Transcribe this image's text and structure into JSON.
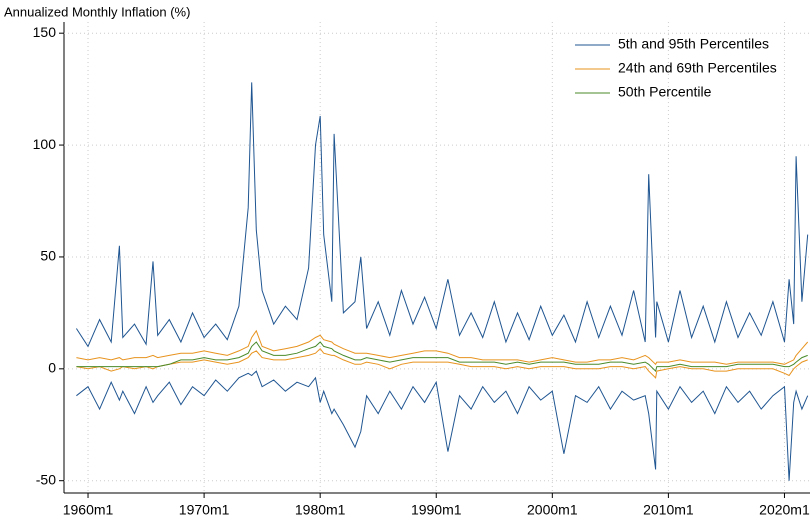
{
  "chart_data": {
    "type": "line",
    "y_label": "Annualized Monthly Inflation (%)",
    "x": [
      1959,
      1960,
      1961,
      1962,
      1962.7,
      1963,
      1964,
      1965,
      1965.6,
      1966,
      1967,
      1968,
      1969,
      1970,
      1971,
      1972,
      1973,
      1973.8,
      1974.1,
      1974.5,
      1975,
      1976,
      1977,
      1978,
      1979,
      1979.6,
      1980,
      1980.3,
      1981,
      1981.2,
      1982,
      1983,
      1983.5,
      1984,
      1985,
      1986,
      1987,
      1988,
      1989,
      1990,
      1991,
      1992,
      1993,
      1994,
      1995,
      1996,
      1997,
      1998,
      1999,
      2000,
      2001,
      2002,
      2003,
      2004,
      2005,
      2006,
      2007,
      2008,
      2008.3,
      2008.9,
      2009,
      2010,
      2011,
      2012,
      2013,
      2014,
      2015,
      2016,
      2017,
      2018,
      2019,
      2020,
      2020.4,
      2020.8,
      2021,
      2021.5,
      2022
    ],
    "series": [
      {
        "color": "#1f5591",
        "values": [
          -12,
          -8,
          -18,
          -6,
          -14,
          -10,
          -20,
          -8,
          -15,
          -12,
          -6,
          -16,
          -8,
          -12,
          -5,
          -10,
          -4,
          -2,
          -3,
          -1,
          -8,
          -5,
          -10,
          -6,
          -8,
          -4,
          -15,
          -10,
          -20,
          -18,
          -25,
          -35,
          -28,
          -12,
          -20,
          -10,
          -18,
          -8,
          -15,
          -6,
          -37,
          -12,
          -18,
          -8,
          -15,
          -10,
          -20,
          -8,
          -14,
          -10,
          -38,
          -12,
          -15,
          -8,
          -18,
          -10,
          -14,
          -12,
          -20,
          -45,
          -10,
          -18,
          -8,
          -15,
          -10,
          -20,
          -8,
          -15,
          -10,
          -18,
          -12,
          -8,
          -50,
          -15,
          -10,
          -18,
          -12
        ]
      },
      {
        "name": "5th and 95th Percentiles",
        "color": "#1f5591",
        "values": [
          18,
          10,
          22,
          12,
          55,
          14,
          20,
          11,
          48,
          15,
          22,
          12,
          25,
          14,
          20,
          13,
          28,
          72,
          128,
          62,
          35,
          20,
          28,
          22,
          45,
          100,
          113,
          60,
          30,
          105,
          25,
          30,
          50,
          18,
          30,
          15,
          35,
          20,
          32,
          18,
          40,
          15,
          25,
          14,
          30,
          12,
          25,
          13,
          28,
          15,
          24,
          12,
          30,
          14,
          28,
          15,
          35,
          12,
          87,
          14,
          30,
          12,
          35,
          14,
          28,
          12,
          30,
          14,
          25,
          15,
          30,
          12,
          40,
          20,
          95,
          30,
          60
        ]
      },
      {
        "color": "#e8931e",
        "values": [
          1,
          0,
          1,
          -1,
          0,
          1,
          0,
          1,
          0,
          1,
          2,
          3,
          3,
          4,
          3,
          2,
          3,
          5,
          7,
          8,
          5,
          4,
          4,
          5,
          6,
          7,
          9,
          7,
          6,
          6,
          4,
          2,
          2,
          3,
          2,
          0,
          2,
          3,
          3,
          3,
          3,
          2,
          1,
          1,
          1,
          0,
          1,
          0,
          1,
          1,
          1,
          0,
          0,
          0,
          1,
          1,
          0,
          1,
          -1,
          -4,
          -1,
          0,
          1,
          0,
          0,
          -1,
          -1,
          0,
          0,
          0,
          0,
          -2,
          -3,
          0,
          1,
          3,
          4
        ]
      },
      {
        "name": "24th and 69th Percentiles",
        "color": "#e8931e",
        "values": [
          5,
          4,
          5,
          4,
          5,
          4,
          5,
          5,
          6,
          5,
          6,
          7,
          7,
          8,
          7,
          6,
          8,
          10,
          14,
          17,
          10,
          8,
          9,
          10,
          12,
          14,
          15,
          13,
          12,
          11,
          9,
          7,
          7,
          7,
          6,
          5,
          6,
          7,
          8,
          8,
          7,
          5,
          5,
          4,
          4,
          4,
          4,
          3,
          4,
          5,
          4,
          3,
          3,
          4,
          4,
          5,
          4,
          6,
          5,
          2,
          3,
          3,
          4,
          3,
          3,
          3,
          2,
          3,
          3,
          3,
          3,
          2,
          3,
          4,
          6,
          9,
          12
        ]
      },
      {
        "name": "50th Percentile",
        "color": "#4a8a2a",
        "values": [
          1,
          1,
          1,
          1,
          1,
          1,
          1,
          1,
          1,
          1,
          2,
          4,
          4,
          5,
          4,
          4,
          5,
          7,
          10,
          12,
          8,
          6,
          6,
          7,
          9,
          10,
          12,
          10,
          9,
          8,
          6,
          4,
          4,
          5,
          4,
          3,
          4,
          5,
          5,
          5,
          5,
          3,
          3,
          3,
          3,
          2,
          3,
          2,
          3,
          3,
          3,
          2,
          2,
          2,
          3,
          3,
          2,
          3,
          2,
          -1,
          1,
          1,
          2,
          1,
          1,
          1,
          1,
          2,
          2,
          2,
          2,
          1,
          1,
          2,
          3,
          5,
          6
        ]
      }
    ],
    "xlim": [
      1957.93,
      2022.2
    ],
    "ylim": [
      -55.5,
      155
    ],
    "xticks": [
      {
        "value": 1960,
        "label": "1960m1"
      },
      {
        "value": 1970,
        "label": "1970m1"
      },
      {
        "value": 1980,
        "label": "1980m1"
      },
      {
        "value": 1990,
        "label": "1990m1"
      },
      {
        "value": 2000,
        "label": "2000m1"
      },
      {
        "value": 2010,
        "label": "2010m1"
      },
      {
        "value": 2020,
        "label": "2020m1"
      }
    ],
    "yticks": [
      -50,
      0,
      50,
      100,
      150
    ],
    "grid": true,
    "legend": "top-right"
  }
}
